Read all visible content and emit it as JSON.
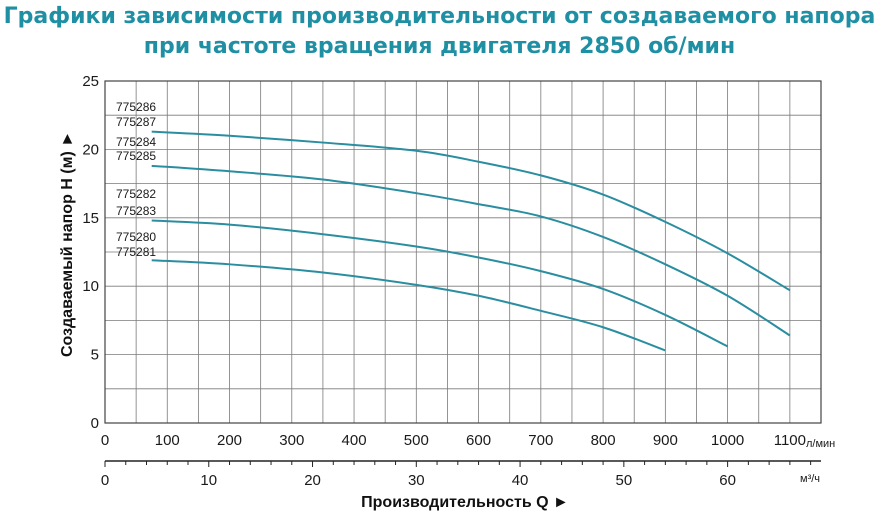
{
  "title_line1": "Графики зависимости производительности от создаваемого напора",
  "title_line2": "при частоте вращения двигателя 2850 об/мин",
  "colors": {
    "title": "#1f8fa3",
    "curve": "#2a8ea0",
    "grid": "#7a7a7a"
  },
  "chart_data": {
    "type": "line",
    "ylabel": "Создаваемый напор H (м) ►",
    "xlabel": "Производительность Q ►",
    "x_unit_top": "л/мин",
    "x_unit_bottom": "м³/ч",
    "xlim": [
      0,
      1150
    ],
    "ylim": [
      0,
      25
    ],
    "yticks": [
      0,
      5,
      10,
      15,
      20,
      25
    ],
    "xticks_lpm": [
      0,
      100,
      200,
      300,
      400,
      500,
      600,
      700,
      800,
      900,
      1000,
      1100
    ],
    "xticks_m3h": [
      0,
      10,
      20,
      30,
      40,
      50,
      60
    ],
    "grid": true,
    "series_labels": [
      "775286",
      "775287",
      "775284",
      "775285",
      "775282",
      "775283",
      "775280",
      "775281"
    ],
    "series": [
      {
        "x": [
          75,
          200,
          350,
          500,
          600,
          700,
          800,
          900,
          1000,
          1100
        ],
        "values": [
          21.3,
          21.0,
          20.5,
          19.9,
          19.1,
          18.1,
          16.7,
          14.7,
          12.4,
          9.7
        ]
      },
      {
        "x": [
          75,
          200,
          350,
          500,
          600,
          700,
          800,
          900,
          1000,
          1100
        ],
        "values": [
          18.8,
          18.4,
          17.8,
          16.8,
          16.0,
          15.1,
          13.6,
          11.6,
          9.3,
          6.4
        ]
      },
      {
        "x": [
          75,
          200,
          350,
          500,
          600,
          700,
          800,
          900,
          1000
        ],
        "values": [
          14.8,
          14.5,
          13.8,
          12.9,
          12.1,
          11.1,
          9.8,
          7.9,
          5.6
        ]
      },
      {
        "x": [
          75,
          200,
          350,
          500,
          600,
          700,
          800,
          900
        ],
        "values": [
          11.9,
          11.6,
          11.0,
          10.1,
          9.3,
          8.2,
          7.0,
          5.3
        ]
      }
    ]
  }
}
